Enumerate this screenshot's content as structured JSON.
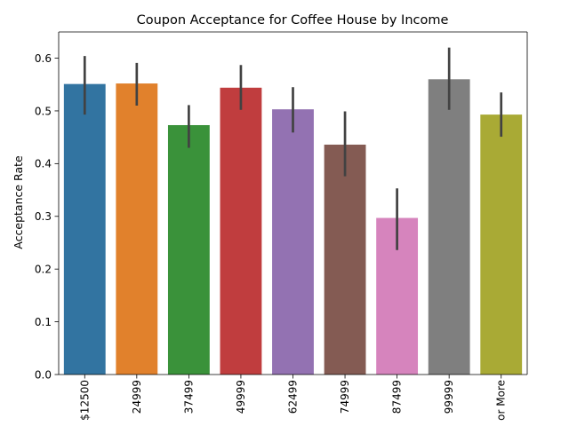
{
  "chart_data": {
    "type": "bar",
    "title": "Coupon Acceptance for Coffee House by Income",
    "xlabel": "",
    "ylabel": "Acceptance Rate",
    "ylim": [
      0,
      0.65
    ],
    "yticks": [
      0.0,
      0.1,
      0.2,
      0.3,
      0.4,
      0.5,
      0.6
    ],
    "ytick_labels": [
      "0.0",
      "0.1",
      "0.2",
      "0.3",
      "0.4",
      "0.5",
      "0.6"
    ],
    "categories": [
      "$12500",
      "24999",
      "37499",
      "49999",
      "62499",
      "74999",
      "87499",
      "99999",
      "or More"
    ],
    "values": [
      0.551,
      0.552,
      0.473,
      0.544,
      0.503,
      0.436,
      0.297,
      0.56,
      0.493
    ],
    "ci_low": [
      0.493,
      0.51,
      0.43,
      0.502,
      0.459,
      0.376,
      0.236,
      0.502,
      0.451
    ],
    "ci_high": [
      0.604,
      0.591,
      0.511,
      0.587,
      0.545,
      0.499,
      0.353,
      0.62,
      0.535
    ],
    "colors": [
      "#3274a1",
      "#e1812c",
      "#3a923a",
      "#c03d3e",
      "#9372b2",
      "#845b53",
      "#d684bd",
      "#7f7f7f",
      "#a9aa35"
    ],
    "error_bar_color": "#424242",
    "grid": false,
    "legend": "none"
  }
}
